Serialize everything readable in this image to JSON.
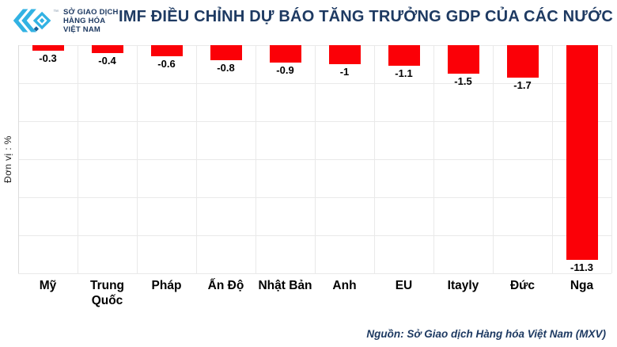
{
  "header": {
    "logo": {
      "line1": "SỞ GIAO DỊCH",
      "line2": "HÀNG HÓA",
      "line3": "VIỆT NAM",
      "trademark": "™",
      "brand_color": "#31b2e3",
      "text_color": "#1e3a62"
    },
    "title": "IMF ĐIỀU CHỈNH DỰ BÁO TĂNG TRƯỞNG GDP CỦA CÁC NƯỚC",
    "title_color": "#1e3a62"
  },
  "chart_data": {
    "type": "bar",
    "title": "IMF ĐIỀU CHỈNH DỰ BÁO TĂNG TRƯỞNG GDP CỦA CÁC NƯỚC",
    "categories": [
      "Mỹ",
      "Trung Quốc",
      "Pháp",
      "Ấn Độ",
      "Nhật Bản",
      "Anh",
      "EU",
      "Itayly",
      "Đức",
      "Nga"
    ],
    "values": [
      -0.3,
      -0.4,
      -0.6,
      -0.8,
      -0.9,
      -1,
      -1.1,
      -1.5,
      -1.7,
      -11.3
    ],
    "value_labels": [
      "-0.3",
      "-0.4",
      "-0.6",
      "-0.8",
      "-0.9",
      "-1",
      "-1.1",
      "-1.5",
      "-1.7",
      "-11.3"
    ],
    "xlabel": "",
    "ylabel": "Đơn vị : %",
    "ylim": [
      -12,
      0
    ],
    "bar_color": "#fb0007",
    "grid": true,
    "legend_position": "none"
  },
  "footer": {
    "source": "Nguồn: Sở Giao dịch Hàng hóa Việt Nam (MXV)"
  }
}
